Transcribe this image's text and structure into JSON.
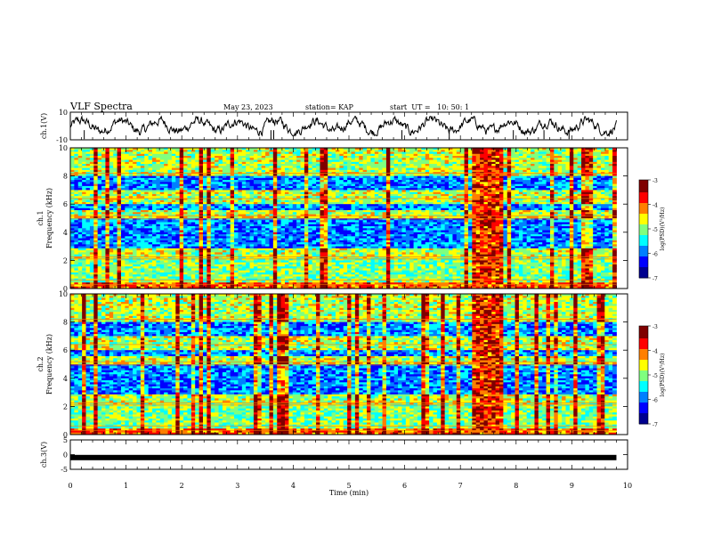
{
  "header": {
    "title": "VLF Spectra",
    "date": "May 23, 2023",
    "station": "station= KAP",
    "start_ut": "start  UT =   10: 50: 1"
  },
  "colorbar": {
    "label": "log(PSD)(V²/Hz)",
    "ticks": [
      "-3",
      "-4",
      "-5",
      "-6",
      "-7"
    ],
    "colormap": [
      "#00008f",
      "#0000ff",
      "#007fff",
      "#00ffff",
      "#7fff7f",
      "#ffff00",
      "#ff7f00",
      "#ff0000",
      "#7f0000"
    ]
  },
  "chart_data": [
    {
      "type": "line",
      "panel": "ch1-waveform",
      "ylabel": "ch.1(V)",
      "ylim": [
        -10,
        10
      ],
      "yticks": [
        "10",
        "-10"
      ],
      "xlim": [
        0,
        10
      ],
      "x_extent_min": 9.8,
      "description_values": {
        "mean": 0,
        "amplitude": 4
      }
    },
    {
      "type": "heatmap",
      "panel": "ch1-spectrogram",
      "ylabel": "ch.1 Frequency (kHz)",
      "ylim": [
        0,
        10
      ],
      "yticks": [
        "0",
        "2",
        "4",
        "6",
        "8",
        "10"
      ],
      "xlim": [
        0,
        10
      ],
      "zlim": [
        -7,
        -3
      ],
      "strong_band_x": [
        7.2,
        7.75
      ]
    },
    {
      "type": "heatmap",
      "panel": "ch2-spectrogram",
      "ylabel": "ch.2 Frequency (kHz)",
      "ylim": [
        0,
        10
      ],
      "yticks": [
        "0",
        "2",
        "4",
        "6",
        "8",
        "10"
      ],
      "xlim": [
        0,
        10
      ],
      "zlim": [
        -7,
        -3
      ],
      "strong_band_x": [
        7.2,
        7.75
      ]
    },
    {
      "type": "line",
      "panel": "ch3-waveform",
      "ylabel": "ch.3(V)",
      "ylim": [
        -5,
        5
      ],
      "yticks": [
        "5",
        "0",
        "-5"
      ],
      "xlim": [
        0,
        10
      ],
      "x_extent_min": 9.8,
      "level": -1
    }
  ],
  "xaxis": {
    "label": "Time (min)",
    "ticks": [
      "0",
      "1",
      "2",
      "3",
      "4",
      "5",
      "6",
      "7",
      "8",
      "9",
      "10"
    ]
  }
}
